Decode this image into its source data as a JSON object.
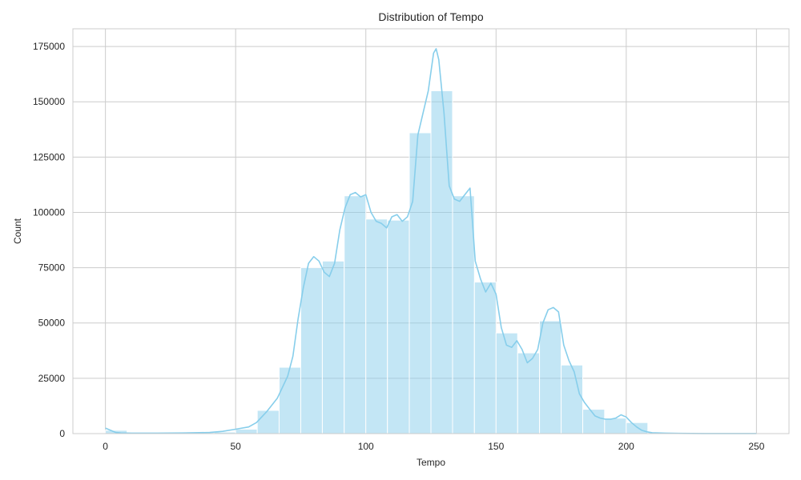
{
  "chart_data": {
    "type": "bar",
    "title": "Distribution of Tempo",
    "xlabel": "Tempo",
    "ylabel": "Count",
    "xlim": [
      -12.5,
      262.5
    ],
    "ylim": [
      0,
      183000
    ],
    "x_ticks": [
      0,
      50,
      100,
      150,
      200,
      250
    ],
    "y_ticks": [
      0,
      25000,
      50000,
      75000,
      100000,
      125000,
      150000,
      175000
    ],
    "grid": true,
    "bar_color": "#87ceeb",
    "bar_opacity": 0.5,
    "line_color": "#87ceeb",
    "bin_width": 8.3,
    "bins": [
      {
        "x0": 0.0,
        "x1": 8.3,
        "count": 1500
      },
      {
        "x0": 8.3,
        "x1": 16.7,
        "count": 400
      },
      {
        "x0": 16.7,
        "x1": 25.0,
        "count": 300
      },
      {
        "x0": 25.0,
        "x1": 33.3,
        "count": 300
      },
      {
        "x0": 33.3,
        "x1": 41.7,
        "count": 500
      },
      {
        "x0": 41.7,
        "x1": 50.0,
        "count": 700
      },
      {
        "x0": 50.0,
        "x1": 58.3,
        "count": 2000
      },
      {
        "x0": 58.3,
        "x1": 66.7,
        "count": 10500
      },
      {
        "x0": 66.7,
        "x1": 75.0,
        "count": 30000
      },
      {
        "x0": 75.0,
        "x1": 83.3,
        "count": 75000
      },
      {
        "x0": 83.3,
        "x1": 91.7,
        "count": 78000
      },
      {
        "x0": 91.7,
        "x1": 100.0,
        "count": 107500
      },
      {
        "x0": 100.0,
        "x1": 108.3,
        "count": 97000
      },
      {
        "x0": 108.3,
        "x1": 116.7,
        "count": 96500
      },
      {
        "x0": 116.7,
        "x1": 125.0,
        "count": 136000
      },
      {
        "x0": 125.0,
        "x1": 133.3,
        "count": 155000
      },
      {
        "x0": 133.3,
        "x1": 141.7,
        "count": 107500
      },
      {
        "x0": 141.7,
        "x1": 150.0,
        "count": 68500
      },
      {
        "x0": 150.0,
        "x1": 158.3,
        "count": 45500
      },
      {
        "x0": 158.3,
        "x1": 166.7,
        "count": 36500
      },
      {
        "x0": 166.7,
        "x1": 175.0,
        "count": 51000
      },
      {
        "x0": 175.0,
        "x1": 183.3,
        "count": 31000
      },
      {
        "x0": 183.3,
        "x1": 191.7,
        "count": 11000
      },
      {
        "x0": 191.7,
        "x1": 200.0,
        "count": 7000
      },
      {
        "x0": 200.0,
        "x1": 208.3,
        "count": 5000
      },
      {
        "x0": 208.3,
        "x1": 216.7,
        "count": 500
      },
      {
        "x0": 216.7,
        "x1": 225.0,
        "count": 300
      },
      {
        "x0": 225.0,
        "x1": 233.3,
        "count": 200
      },
      {
        "x0": 233.3,
        "x1": 241.7,
        "count": 100
      },
      {
        "x0": 241.7,
        "x1": 250.0,
        "count": 100
      }
    ],
    "kde": {
      "x": [
        0,
        2,
        4,
        6,
        10,
        20,
        30,
        40,
        45,
        50,
        55,
        58,
        62,
        66,
        70,
        72,
        74,
        76,
        78,
        80,
        82,
        84,
        86,
        88,
        90,
        92,
        94,
        96,
        98,
        100,
        102,
        104,
        106,
        108,
        110,
        112,
        114,
        116,
        118,
        120,
        122,
        124,
        126,
        127,
        128,
        130,
        132,
        134,
        136,
        138,
        140,
        142,
        144,
        146,
        148,
        150,
        152,
        154,
        156,
        158,
        160,
        162,
        164,
        166,
        168,
        170,
        172,
        174,
        176,
        178,
        180,
        182,
        184,
        186,
        188,
        190,
        192,
        194,
        196,
        198,
        200,
        202,
        204,
        206,
        208,
        210,
        215,
        220,
        230,
        240,
        250
      ],
      "y": [
        2500,
        1500,
        500,
        300,
        200,
        200,
        300,
        500,
        1000,
        2000,
        3000,
        5000,
        10000,
        16000,
        26000,
        35000,
        52000,
        66000,
        77000,
        80000,
        78000,
        73000,
        71000,
        77000,
        92000,
        102000,
        108000,
        109000,
        107000,
        108000,
        100000,
        96000,
        95000,
        93000,
        98000,
        99000,
        96000,
        98000,
        105000,
        135000,
        145000,
        155000,
        172000,
        174000,
        169000,
        145000,
        112000,
        106000,
        105000,
        108000,
        111000,
        78000,
        70000,
        64000,
        68000,
        63000,
        48000,
        40000,
        39000,
        42000,
        38000,
        32000,
        34000,
        38000,
        50000,
        56000,
        57000,
        55000,
        40000,
        33000,
        28000,
        18000,
        14000,
        11000,
        8000,
        7000,
        6500,
        6500,
        7000,
        8500,
        7500,
        5000,
        3000,
        1500,
        800,
        400,
        200,
        100,
        50,
        50,
        30
      ]
    }
  }
}
